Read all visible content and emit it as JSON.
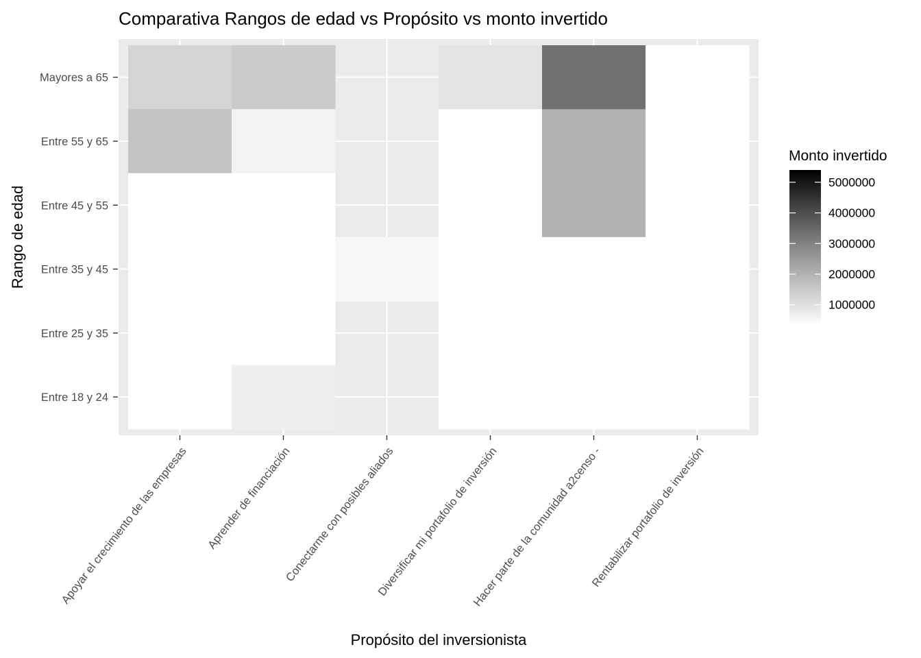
{
  "chart_data": {
    "type": "heatmap",
    "title": "Comparativa Rangos de edad vs Propósito vs monto invertido",
    "xlabel": "Propósito del inversionista",
    "ylabel": "Rango de edad",
    "x_categories": [
      "Apoyar el crecimiento de las empresas",
      "Aprender de financiación",
      "Conectarme con posibles aliados",
      "Diversificar mi portafolio de inversión",
      "Hacer parte de la comunidad a2censo -",
      "Rentabilizar portafolio de inversión"
    ],
    "y_categories": [
      "Entre 18 y 24",
      "Entre 25 y 35",
      "Entre 35 y 45",
      "Entre 45 y 55",
      "Entre 55 y 65",
      "Mayores a 65"
    ],
    "cells": [
      {
        "x": "Apoyar el crecimiento de las empresas",
        "y": "Mayores a 65",
        "value": 950000
      },
      {
        "x": "Apoyar el crecimiento de las empresas",
        "y": "Entre 55 y 65",
        "value": 1200000
      },
      {
        "x": "Apoyar el crecimiento de las empresas",
        "y": "Entre 45 y 55",
        "value": 300000
      },
      {
        "x": "Apoyar el crecimiento de las empresas",
        "y": "Entre 35 y 45",
        "value": 300000
      },
      {
        "x": "Apoyar el crecimiento de las empresas",
        "y": "Entre 25 y 35",
        "value": 300000
      },
      {
        "x": "Apoyar el crecimiento de las empresas",
        "y": "Entre 18 y 24",
        "value": 300000
      },
      {
        "x": "Aprender de financiación",
        "y": "Mayores a 65",
        "value": 1100000
      },
      {
        "x": "Aprender de financiación",
        "y": "Entre 55 y 65",
        "value": 500000
      },
      {
        "x": "Aprender de financiación",
        "y": "Entre 45 y 55",
        "value": 300000
      },
      {
        "x": "Aprender de financiación",
        "y": "Entre 35 y 45",
        "value": 300000
      },
      {
        "x": "Aprender de financiación",
        "y": "Entre 25 y 35",
        "value": 300000
      },
      {
        "x": "Aprender de financiación",
        "y": "Entre 18 y 24",
        "value": 550000
      },
      {
        "x": "Conectarme con posibles aliados",
        "y": "Entre 35 y 45",
        "value": 400000
      },
      {
        "x": "Diversificar mi portafolio de inversión",
        "y": "Mayores a 65",
        "value": 700000
      },
      {
        "x": "Diversificar mi portafolio de inversión",
        "y": "Entre 55 y 65",
        "value": 300000
      },
      {
        "x": "Diversificar mi portafolio de inversión",
        "y": "Entre 45 y 55",
        "value": 300000
      },
      {
        "x": "Diversificar mi portafolio de inversión",
        "y": "Entre 35 y 45",
        "value": 300000
      },
      {
        "x": "Diversificar mi portafolio de inversión",
        "y": "Entre 25 y 35",
        "value": 300000
      },
      {
        "x": "Diversificar mi portafolio de inversión",
        "y": "Entre 18 y 24",
        "value": 300000
      },
      {
        "x": "Hacer parte de la comunidad a2censo -",
        "y": "Mayores a 65",
        "value": 2600000
      },
      {
        "x": "Hacer parte de la comunidad a2censo -",
        "y": "Entre 55 y 65",
        "value": 1500000
      },
      {
        "x": "Hacer parte de la comunidad a2censo -",
        "y": "Entre 45 y 55",
        "value": 1500000
      },
      {
        "x": "Hacer parte de la comunidad a2censo -",
        "y": "Entre 35 y 45",
        "value": 300000
      },
      {
        "x": "Hacer parte de la comunidad a2censo -",
        "y": "Entre 25 y 35",
        "value": 300000
      },
      {
        "x": "Hacer parte de la comunidad a2censo -",
        "y": "Entre 18 y 24",
        "value": 300000
      },
      {
        "x": "Rentabilizar portafolio de inversión",
        "y": "Mayores a 65",
        "value": 300000
      },
      {
        "x": "Rentabilizar portafolio de inversión",
        "y": "Entre 55 y 65",
        "value": 300000
      },
      {
        "x": "Rentabilizar portafolio de inversión",
        "y": "Entre 45 y 55",
        "value": 300000
      },
      {
        "x": "Rentabilizar portafolio de inversión",
        "y": "Entre 35 y 45",
        "value": 300000
      },
      {
        "x": "Rentabilizar portafolio de inversión",
        "y": "Entre 25 y 35",
        "value": 300000
      },
      {
        "x": "Rentabilizar portafolio de inversión",
        "y": "Entre 18 y 24",
        "value": 300000
      }
    ],
    "legend": {
      "title": "Monto invertido",
      "placement": "right",
      "min": 300000,
      "max": 5400000,
      "breaks": [
        1000000,
        2000000,
        3000000,
        4000000,
        5000000
      ],
      "break_labels": [
        "1000000",
        "2000000",
        "3000000",
        "4000000",
        "5000000"
      ],
      "low_color": "#ffffff",
      "high_color": "#000000"
    },
    "panel_background": "#ebebeb",
    "grid": true
  }
}
